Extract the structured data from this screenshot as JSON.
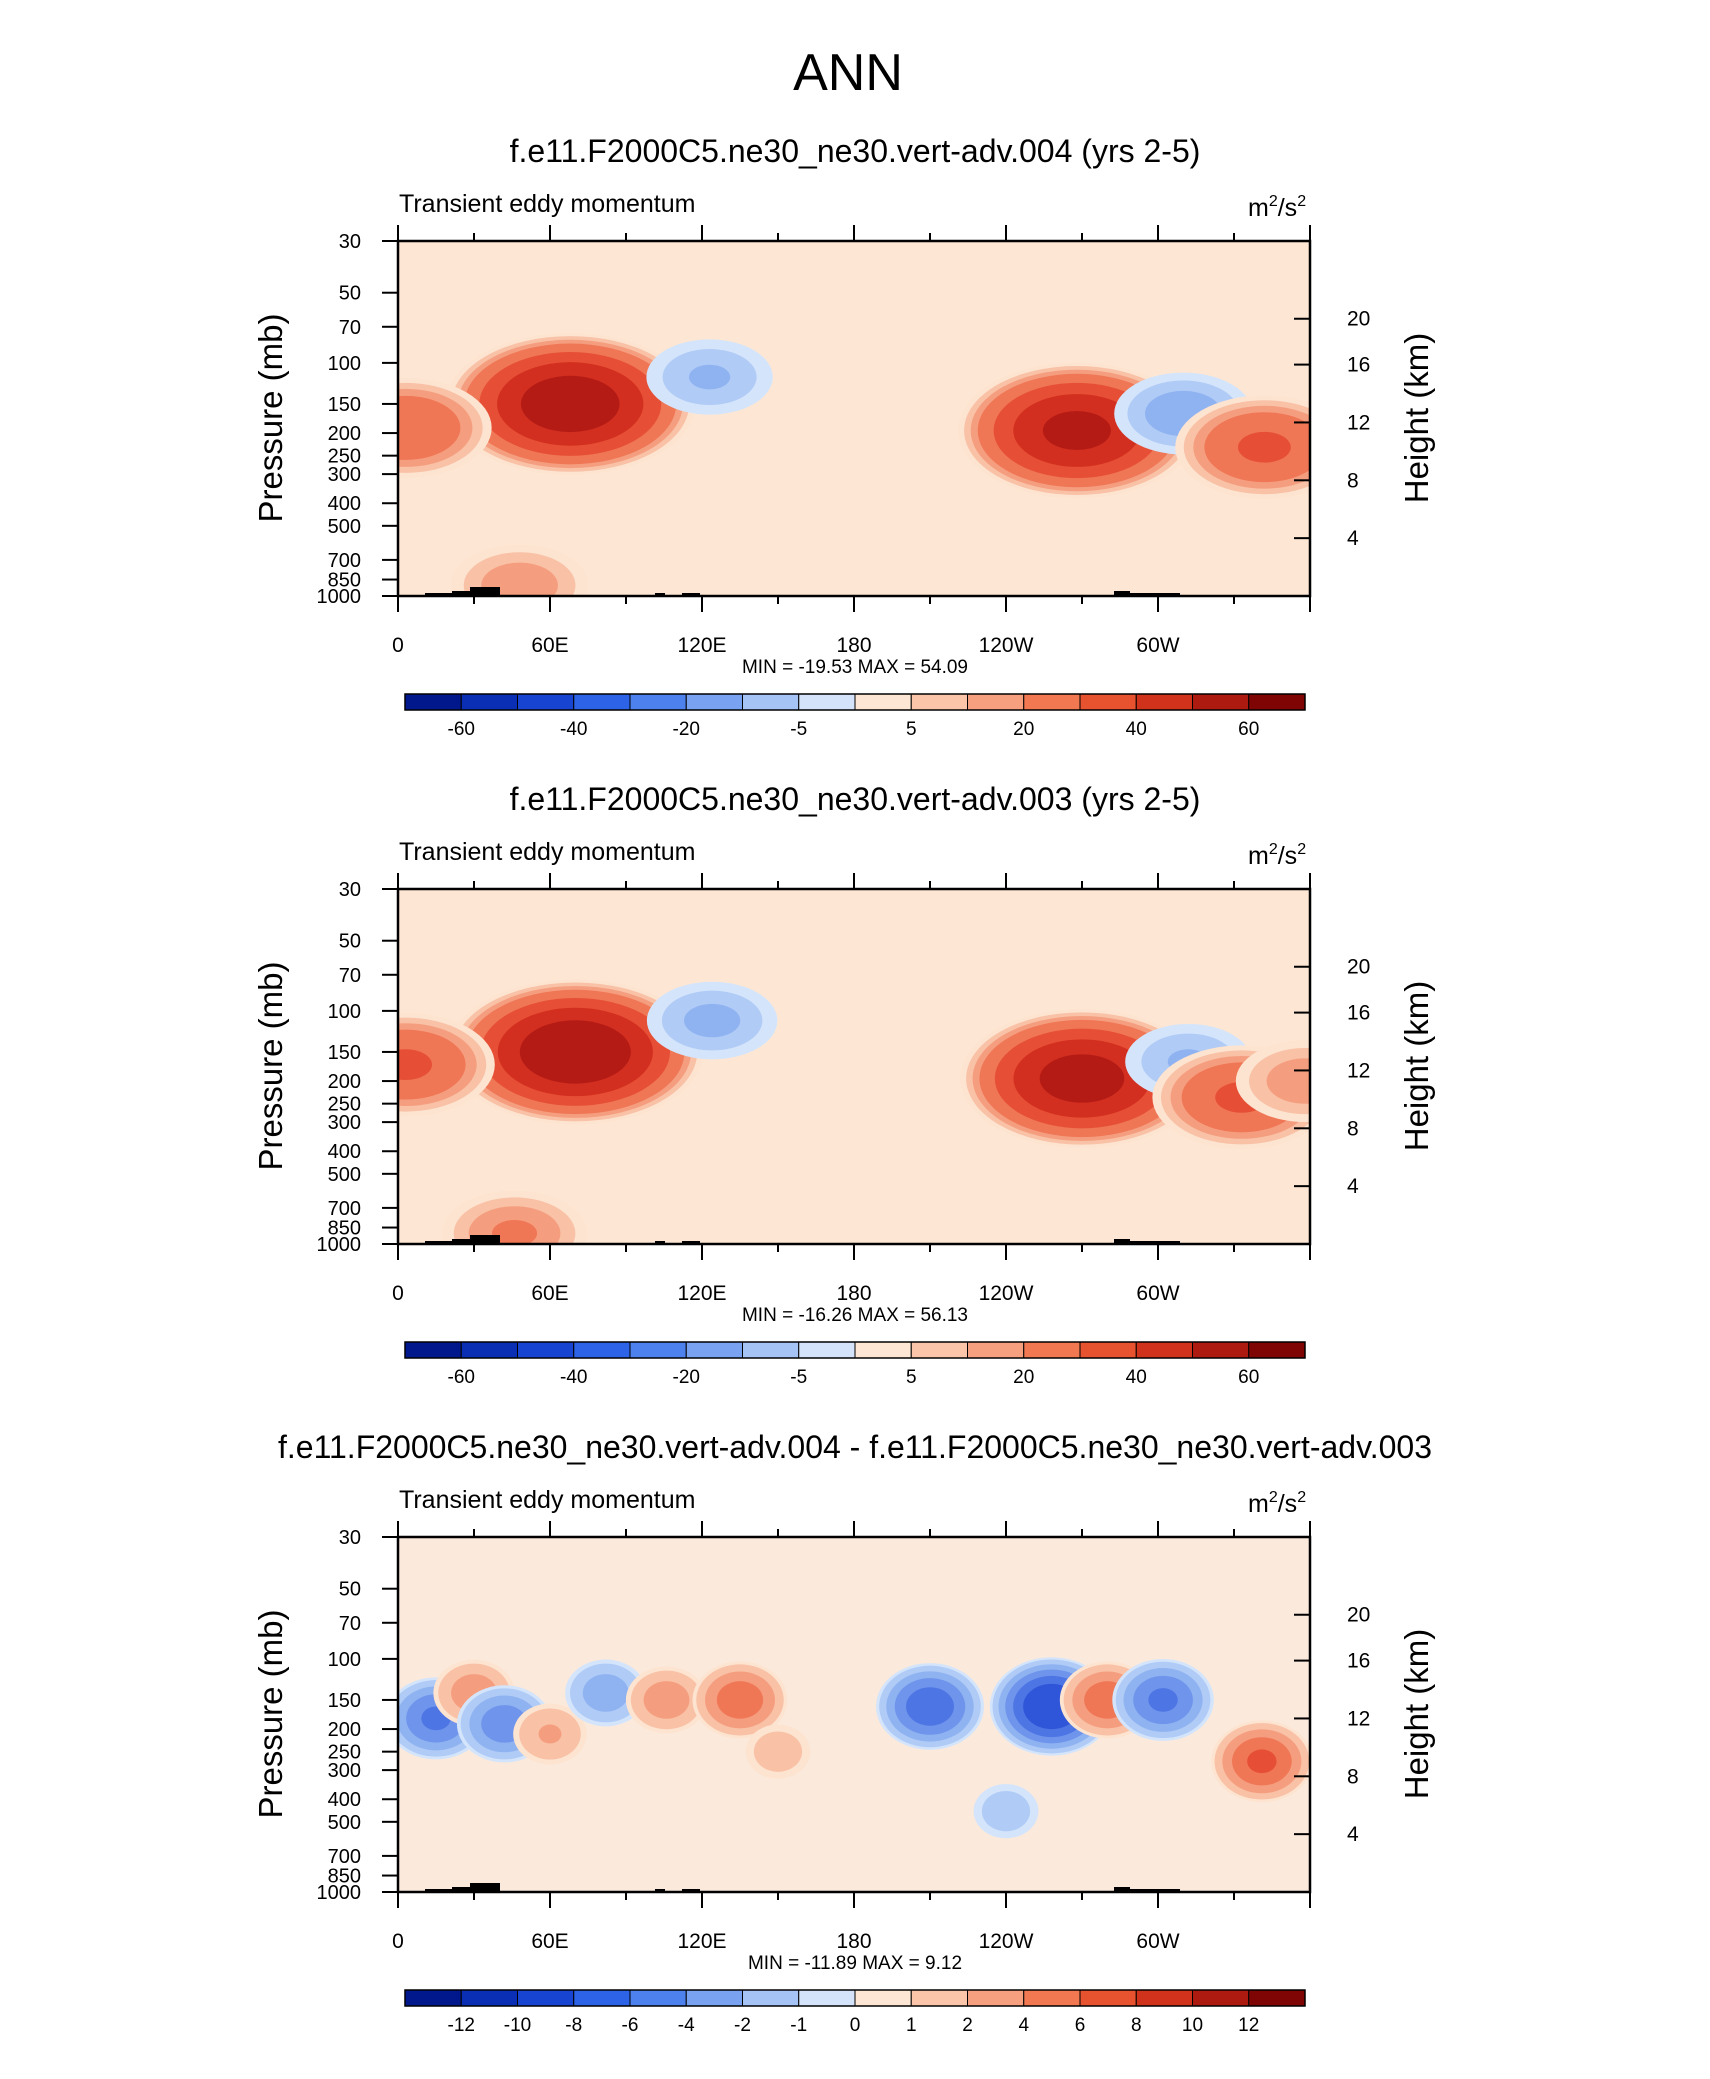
{
  "main_title": "ANN",
  "chart_data": [
    {
      "type": "contour",
      "title": "f.e11.F2000C5.ne30_ne30.vert-adv.004 (yrs 2-5)",
      "subtitle": "Transient eddy momentum",
      "units_base": "m",
      "units_exp1": "2",
      "units_mid": "/s",
      "units_exp2": "2",
      "ylabel": "Pressure (mb)",
      "ylabel_right": "Height (km)",
      "x_ticks": [
        "0",
        "60E",
        "120E",
        "180",
        "120W",
        "60W"
      ],
      "y_ticks": [
        "30",
        "50",
        "70",
        "100",
        "150",
        "200",
        "250",
        "300",
        "400",
        "500",
        "700",
        "850",
        "1000"
      ],
      "y_right_ticks": [
        "20",
        "16",
        "12",
        "8",
        "4"
      ],
      "stats": "MIN = -19.53  MAX =  54.09",
      "colorbar_labels": [
        "-60",
        "-40",
        "-20",
        "-5",
        "5",
        "20",
        "40",
        "60"
      ],
      "min": -19.53,
      "max": 54.09,
      "features": [
        {
          "lon": 68,
          "p": 150,
          "value": 54
        },
        {
          "lon": 3,
          "p": 190,
          "value": 28
        },
        {
          "lon": 48,
          "p": 900,
          "value": 18
        },
        {
          "lon": 123,
          "p": 115,
          "value": -15
        },
        {
          "lon": 268,
          "p": 195,
          "value": 50
        },
        {
          "lon": 310,
          "p": 165,
          "value": -18
        },
        {
          "lon": 342,
          "p": 230,
          "value": 30
        }
      ]
    },
    {
      "type": "contour",
      "title": "f.e11.F2000C5.ne30_ne30.vert-adv.003 (yrs 2-5)",
      "subtitle": "Transient eddy momentum",
      "units_base": "m",
      "units_exp1": "2",
      "units_mid": "/s",
      "units_exp2": "2",
      "ylabel": "Pressure (mb)",
      "ylabel_right": "Height (km)",
      "x_ticks": [
        "0",
        "60E",
        "120E",
        "180",
        "120W",
        "60W"
      ],
      "y_ticks": [
        "30",
        "50",
        "70",
        "100",
        "150",
        "200",
        "250",
        "300",
        "400",
        "500",
        "700",
        "850",
        "1000"
      ],
      "y_right_ticks": [
        "20",
        "16",
        "12",
        "8",
        "4"
      ],
      "stats": "MIN = -16.26  MAX =  56.13",
      "colorbar_labels": [
        "-60",
        "-40",
        "-20",
        "-5",
        "5",
        "20",
        "40",
        "60"
      ],
      "min": -16.26,
      "max": 56.13,
      "features": [
        {
          "lon": 70,
          "p": 150,
          "value": 56
        },
        {
          "lon": 3,
          "p": 170,
          "value": 30
        },
        {
          "lon": 46,
          "p": 900,
          "value": 20
        },
        {
          "lon": 124,
          "p": 110,
          "value": -16
        },
        {
          "lon": 270,
          "p": 195,
          "value": 52
        },
        {
          "lon": 312,
          "p": 165,
          "value": -15
        },
        {
          "lon": 333,
          "p": 235,
          "value": 30
        },
        {
          "lon": 358,
          "p": 200,
          "value": 18
        }
      ]
    },
    {
      "type": "contour",
      "title": "f.e11.F2000C5.ne30_ne30.vert-adv.004 - f.e11.F2000C5.ne30_ne30.vert-adv.003",
      "subtitle": "Transient eddy momentum",
      "units_base": "m",
      "units_exp1": "2",
      "units_mid": "/s",
      "units_exp2": "2",
      "ylabel": "Pressure (mb)",
      "ylabel_right": "Height (km)",
      "x_ticks": [
        "0",
        "60E",
        "120E",
        "180",
        "120W",
        "60W"
      ],
      "y_ticks": [
        "30",
        "50",
        "70",
        "100",
        "150",
        "200",
        "250",
        "300",
        "400",
        "500",
        "700",
        "850",
        "1000"
      ],
      "y_right_ticks": [
        "20",
        "16",
        "12",
        "8",
        "4"
      ],
      "stats": "MIN = -11.89  MAX =  9.12",
      "colorbar_labels": [
        "-12",
        "-10",
        "-8",
        "-6",
        "-4",
        "-2",
        "-1",
        "0",
        "1",
        "2",
        "4",
        "6",
        "8",
        "10",
        "12"
      ],
      "min": -11.89,
      "max": 9.12,
      "features": [
        {
          "lon": 15,
          "p": 180,
          "value": -8
        },
        {
          "lon": 30,
          "p": 140,
          "value": 5
        },
        {
          "lon": 42,
          "p": 190,
          "value": -7
        },
        {
          "lon": 60,
          "p": 210,
          "value": 4
        },
        {
          "lon": 82,
          "p": 140,
          "value": -5
        },
        {
          "lon": 106,
          "p": 150,
          "value": 5
        },
        {
          "lon": 135,
          "p": 150,
          "value": 7
        },
        {
          "lon": 150,
          "p": 250,
          "value": 3
        },
        {
          "lon": 210,
          "p": 160,
          "value": -9
        },
        {
          "lon": 258,
          "p": 160,
          "value": -11.5
        },
        {
          "lon": 280,
          "p": 150,
          "value": 7
        },
        {
          "lon": 302,
          "p": 150,
          "value": -8
        },
        {
          "lon": 341,
          "p": 275,
          "value": 8
        },
        {
          "lon": 240,
          "p": 450,
          "value": -3
        }
      ]
    }
  ]
}
